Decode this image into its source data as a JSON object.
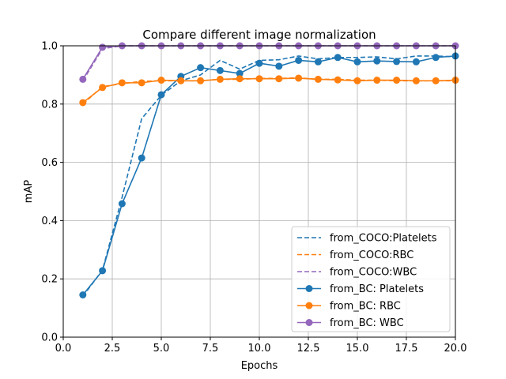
{
  "chart_data": {
    "type": "line",
    "title": "Compare different image normalization",
    "xlabel": "Epochs",
    "ylabel": "mAP",
    "xlim": [
      0,
      20
    ],
    "ylim": [
      0,
      1
    ],
    "xticks": [
      "0.0",
      "2.5",
      "5.0",
      "7.5",
      "10.0",
      "12.5",
      "15.0",
      "17.5",
      "20.0"
    ],
    "yticks": [
      "0.0",
      "0.2",
      "0.4",
      "0.6",
      "0.8",
      "1.0"
    ],
    "grid": true,
    "legend_position": "bottom-right",
    "x": [
      1,
      2,
      3,
      4,
      5,
      6,
      7,
      8,
      9,
      10,
      11,
      12,
      13,
      14,
      15,
      16,
      17,
      18,
      19,
      20
    ],
    "series": [
      {
        "name": "from_COCO:Platelets",
        "style": "dashed",
        "color": "#1f77b4",
        "values": [
          0.14,
          0.23,
          0.48,
          0.75,
          0.83,
          0.88,
          0.9,
          0.95,
          0.92,
          0.95,
          0.952,
          0.965,
          0.955,
          0.96,
          0.96,
          0.962,
          0.955,
          0.965,
          0.965,
          0.962
        ]
      },
      {
        "name": "from_COCO:RBC",
        "style": "dashed",
        "color": "#ff7f0e",
        "values": [
          0.8,
          0.86,
          0.87,
          0.878,
          0.88,
          0.88,
          0.88,
          0.885,
          0.885,
          0.888,
          0.888,
          0.89,
          0.885,
          0.885,
          0.882,
          0.882,
          0.88,
          0.88,
          0.88,
          0.88
        ]
      },
      {
        "name": "from_COCO:WBC",
        "style": "dashed",
        "color": "#9467bd",
        "values": [
          0.88,
          0.99,
          1.0,
          1.0,
          1.0,
          1.0,
          1.0,
          1.0,
          1.0,
          1.0,
          1.0,
          1.0,
          1.0,
          1.0,
          1.0,
          1.0,
          1.0,
          1.0,
          1.0,
          1.0
        ]
      },
      {
        "name": "from_BC: Platelets",
        "style": "solid-marker",
        "color": "#1f77b4",
        "values": [
          0.145,
          0.228,
          0.458,
          0.615,
          0.832,
          0.895,
          0.925,
          0.915,
          0.905,
          0.94,
          0.93,
          0.95,
          0.945,
          0.96,
          0.945,
          0.948,
          0.946,
          0.945,
          0.96,
          0.965
        ]
      },
      {
        "name": "from_BC: RBC",
        "style": "solid-marker",
        "color": "#ff7f0e",
        "values": [
          0.805,
          0.857,
          0.873,
          0.873,
          0.882,
          0.88,
          0.88,
          0.885,
          0.887,
          0.887,
          0.887,
          0.889,
          0.885,
          0.883,
          0.88,
          0.882,
          0.882,
          0.88,
          0.88,
          0.882
        ]
      },
      {
        "name": "from_BC: WBC",
        "style": "solid-marker",
        "color": "#9467bd",
        "values": [
          0.885,
          0.995,
          1.0,
          1.0,
          1.0,
          1.0,
          1.0,
          1.0,
          1.0,
          1.0,
          1.0,
          1.0,
          1.0,
          1.0,
          1.0,
          1.0,
          1.0,
          1.0,
          1.0,
          1.0
        ]
      }
    ]
  }
}
